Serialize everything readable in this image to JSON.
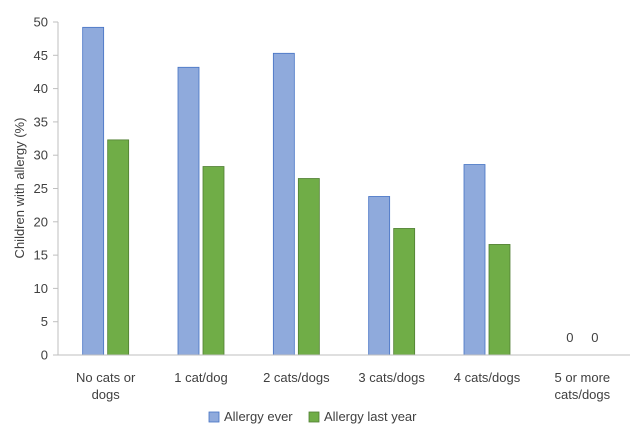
{
  "chart_data": {
    "type": "bar",
    "title": "",
    "xlabel": "",
    "ylabel": "Children with allergy (%)",
    "ylim": [
      0,
      50
    ],
    "y_ticks": [
      0,
      5,
      10,
      15,
      20,
      25,
      30,
      35,
      40,
      45,
      50
    ],
    "grid": false,
    "legend_position": "bottom",
    "categories": [
      [
        "No cats or",
        "dogs"
      ],
      [
        "1 cat/dog"
      ],
      [
        "2 cats/dogs"
      ],
      [
        "3 cats/dogs"
      ],
      [
        "4 cats/dogs"
      ],
      [
        "5 or more",
        "cats/dogs"
      ]
    ],
    "series": [
      {
        "name": "Allergy ever",
        "color": "#8faadc",
        "stroke": "#4472c4",
        "values": [
          49.2,
          43.2,
          45.3,
          23.8,
          28.6,
          0
        ]
      },
      {
        "name": "Allergy last year",
        "color": "#70ad47",
        "stroke": "#507e32",
        "values": [
          32.3,
          28.3,
          26.5,
          19.0,
          16.6,
          0
        ]
      }
    ],
    "annotations": [
      {
        "category_index": 5,
        "series_index": 0,
        "text": "0"
      },
      {
        "category_index": 5,
        "series_index": 1,
        "text": "0"
      }
    ]
  }
}
